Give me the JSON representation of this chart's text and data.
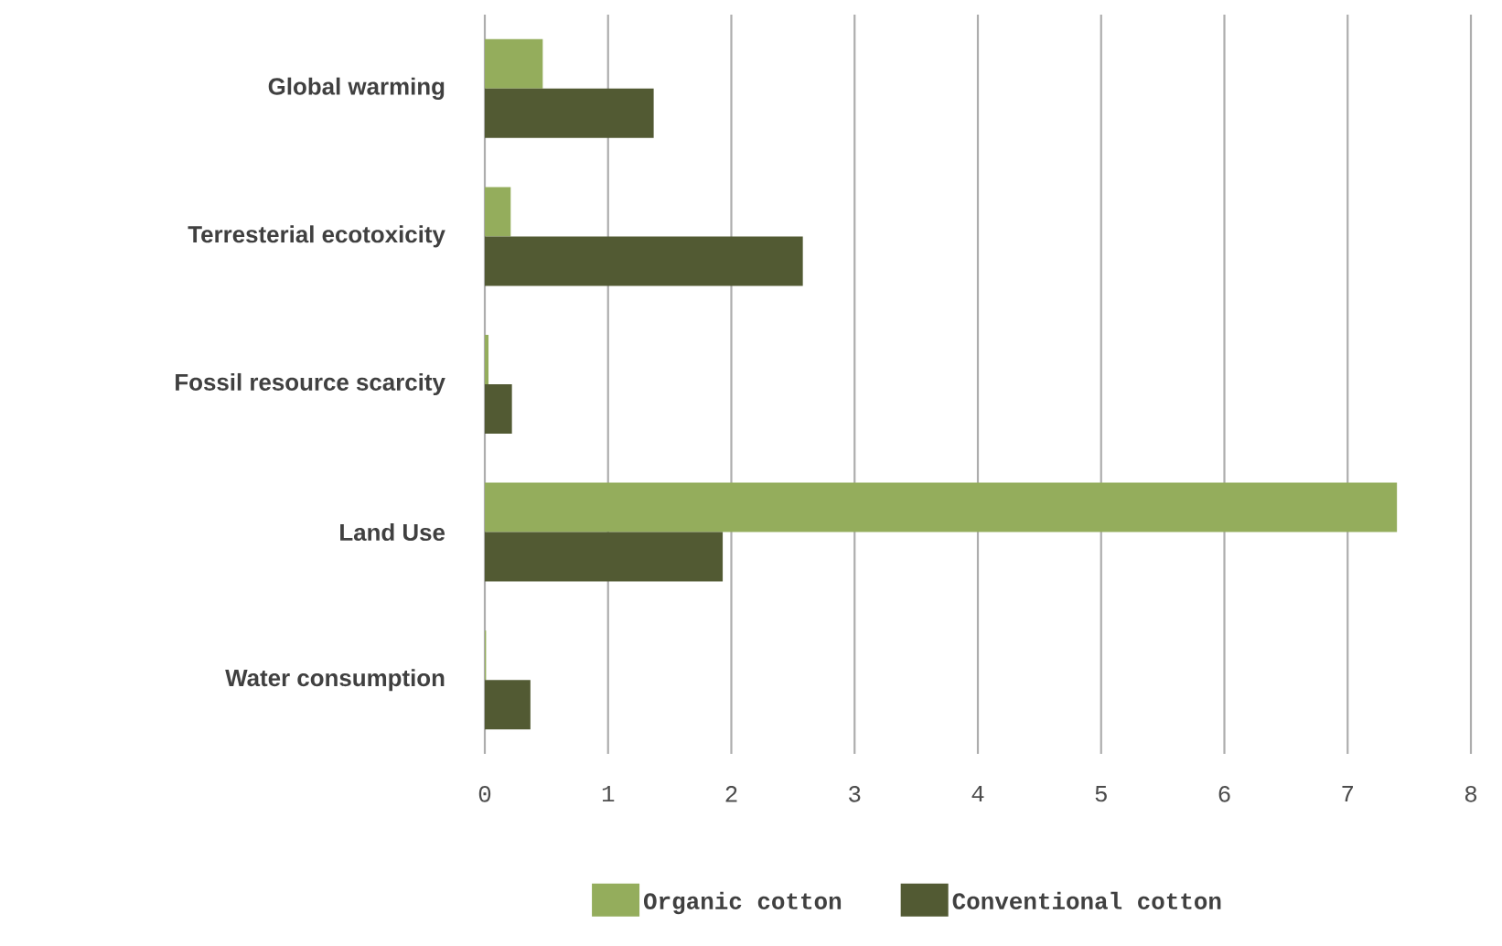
{
  "chart_data": {
    "type": "bar",
    "orientation": "horizontal",
    "categories": [
      "Global warming",
      "Terresterial ecotoxicity",
      "Fossil resource scarcity",
      "Land Use",
      "Water consumption"
    ],
    "series": [
      {
        "name": "Organic cotton",
        "color": "#94ad5c",
        "values": [
          0.47,
          0.21,
          0.03,
          7.4,
          0.01
        ]
      },
      {
        "name": "Conventional cotton",
        "color": "#525a33",
        "values": [
          1.37,
          2.58,
          0.22,
          1.93,
          0.37
        ]
      }
    ],
    "xlim": [
      0,
      8
    ],
    "xticks": [
      0,
      1,
      2,
      3,
      4,
      5,
      6,
      7,
      8
    ],
    "grid": "x",
    "legend": "bottom"
  }
}
